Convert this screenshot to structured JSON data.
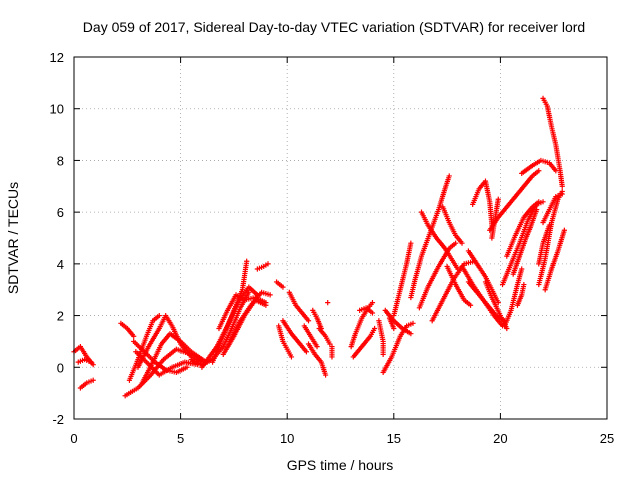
{
  "chart_data": {
    "type": "scatter",
    "title": "Day 059 of 2017, Sidereal Day-to-day VTEC variation (SDTVAR) for receiver lord",
    "xlabel": "GPS time / hours",
    "ylabel": "SDTVAR / TECUs",
    "xlim": [
      0,
      25
    ],
    "ylim": [
      -2,
      12
    ],
    "xticks": [
      "0",
      "5",
      "10",
      "15",
      "20",
      "25"
    ],
    "yticks": [
      "-2",
      "0",
      "2",
      "4",
      "6",
      "8",
      "10",
      "12"
    ],
    "grid": true,
    "marker": "plus",
    "colors": {
      "series": "#ff0000"
    },
    "series": [
      {
        "tracks": [
          [
            [
              0.0,
              0.6
            ],
            [
              0.3,
              0.8
            ],
            [
              0.6,
              0.4
            ],
            [
              0.9,
              0.1
            ]
          ],
          [
            [
              0.3,
              -0.8
            ],
            [
              0.6,
              -0.6
            ],
            [
              0.9,
              -0.5
            ]
          ],
          [
            [
              0.2,
              0.2
            ],
            [
              0.5,
              0.3
            ],
            [
              0.8,
              0.2
            ]
          ],
          [
            [
              2.2,
              1.7
            ],
            [
              2.5,
              1.5
            ],
            [
              2.8,
              1.2
            ]
          ],
          [
            [
              2.4,
              -1.1
            ],
            [
              3.0,
              -0.8
            ],
            [
              3.6,
              -0.3
            ],
            [
              4.2,
              0.3
            ],
            [
              4.8,
              0.7
            ],
            [
              5.5,
              0.5
            ],
            [
              6.0,
              0.3
            ]
          ],
          [
            [
              2.6,
              -0.5
            ],
            [
              3.0,
              0.3
            ],
            [
              3.4,
              1.2
            ],
            [
              3.7,
              1.8
            ],
            [
              4.0,
              2.0
            ]
          ],
          [
            [
              2.8,
              1.0
            ],
            [
              3.3,
              0.6
            ],
            [
              3.8,
              0.2
            ],
            [
              4.3,
              -0.1
            ],
            [
              4.8,
              -0.2
            ],
            [
              5.3,
              0.0
            ]
          ],
          [
            [
              3.0,
              0.0
            ],
            [
              3.5,
              0.8
            ],
            [
              4.0,
              1.5
            ],
            [
              4.3,
              2.0
            ],
            [
              4.6,
              1.6
            ],
            [
              5.0,
              0.9
            ],
            [
              5.5,
              0.4
            ],
            [
              6.0,
              0.2
            ]
          ],
          [
            [
              3.2,
              -0.6
            ],
            [
              3.7,
              0.2
            ],
            [
              4.1,
              0.9
            ],
            [
              4.5,
              1.3
            ],
            [
              5.0,
              1.0
            ],
            [
              5.5,
              0.6
            ],
            [
              6.2,
              0.2
            ]
          ],
          [
            [
              2.9,
              0.6
            ],
            [
              3.4,
              0.2
            ],
            [
              4.0,
              -0.3
            ],
            [
              4.6,
              0.0
            ],
            [
              5.2,
              0.2
            ],
            [
              5.8,
              0.1
            ]
          ],
          [
            [
              5.5,
              0.3
            ],
            [
              6.0,
              0.1
            ],
            [
              6.5,
              0.3
            ],
            [
              7.0,
              0.8
            ],
            [
              7.4,
              1.5
            ],
            [
              7.8,
              2.3
            ],
            [
              8.2,
              2.9
            ]
          ],
          [
            [
              6.5,
              0.2
            ],
            [
              7.0,
              1.2
            ],
            [
              7.5,
              2.2
            ],
            [
              7.9,
              3.0
            ],
            [
              8.1,
              4.1
            ]
          ],
          [
            [
              6.0,
              0.0
            ],
            [
              6.7,
              0.8
            ],
            [
              7.2,
              1.6
            ],
            [
              7.7,
              2.5
            ],
            [
              8.2,
              3.1
            ],
            [
              8.6,
              2.8
            ]
          ],
          [
            [
              6.8,
              1.5
            ],
            [
              7.2,
              2.2
            ],
            [
              7.6,
              2.8
            ],
            [
              8.0,
              2.6
            ],
            [
              8.5,
              2.7
            ],
            [
              9.0,
              2.5
            ]
          ],
          [
            [
              7.0,
              0.5
            ],
            [
              7.5,
              1.2
            ],
            [
              8.0,
              2.0
            ],
            [
              8.5,
              2.6
            ],
            [
              9.0,
              2.4
            ]
          ],
          [
            [
              7.3,
              1.0
            ],
            [
              7.8,
              1.8
            ],
            [
              8.3,
              2.4
            ],
            [
              8.8,
              2.9
            ],
            [
              9.2,
              2.8
            ]
          ],
          [
            [
              8.6,
              3.8
            ],
            [
              8.9,
              3.9
            ],
            [
              9.1,
              4.0
            ]
          ],
          [
            [
              9.5,
              3.3
            ],
            [
              9.8,
              3.1
            ]
          ],
          [
            [
              10.1,
              2.9
            ],
            [
              10.4,
              2.4
            ],
            [
              10.7,
              2.1
            ],
            [
              11.0,
              1.8
            ]
          ],
          [
            [
              9.8,
              1.8
            ],
            [
              10.2,
              1.3
            ],
            [
              10.6,
              0.9
            ],
            [
              10.9,
              0.6
            ]
          ],
          [
            [
              9.6,
              1.6
            ],
            [
              9.8,
              1.0
            ],
            [
              10.0,
              0.7
            ],
            [
              10.2,
              0.4
            ]
          ],
          [
            [
              10.8,
              1.6
            ],
            [
              11.1,
              1.2
            ],
            [
              11.4,
              0.8
            ]
          ],
          [
            [
              11.0,
              0.9
            ],
            [
              11.3,
              0.5
            ],
            [
              11.6,
              0.2
            ],
            [
              11.8,
              -0.3
            ]
          ],
          [
            [
              11.5,
              1.5
            ],
            [
              11.8,
              1.2
            ],
            [
              12.0,
              0.9
            ]
          ],
          [
            [
              11.9,
              2.5
            ]
          ],
          [
            [
              12.1,
              0.8
            ],
            [
              12.1,
              0.4
            ]
          ],
          [
            [
              11.2,
              2.2
            ],
            [
              11.4,
              1.9
            ],
            [
              11.6,
              1.5
            ]
          ],
          [
            [
              13.0,
              0.8
            ],
            [
              13.2,
              1.3
            ],
            [
              13.5,
              1.9
            ],
            [
              13.8,
              2.3
            ],
            [
              14.0,
              2.5
            ]
          ],
          [
            [
              13.1,
              0.4
            ],
            [
              13.5,
              0.8
            ],
            [
              13.9,
              1.2
            ],
            [
              14.1,
              1.5
            ]
          ],
          [
            [
              13.4,
              2.2
            ],
            [
              13.7,
              2.3
            ],
            [
              14.0,
              2.1
            ]
          ],
          [
            [
              14.3,
              1.8
            ],
            [
              14.4,
              1.4
            ],
            [
              14.5,
              1.0
            ],
            [
              14.5,
              0.5
            ]
          ],
          [
            [
              14.5,
              -0.2
            ],
            [
              14.9,
              0.4
            ],
            [
              15.3,
              1.2
            ],
            [
              15.6,
              1.6
            ],
            [
              15.9,
              1.7
            ]
          ],
          [
            [
              14.6,
              2.2
            ],
            [
              15.0,
              1.8
            ],
            [
              15.4,
              1.5
            ],
            [
              15.8,
              1.3
            ]
          ],
          [
            [
              15.0,
              2.0
            ],
            [
              15.3,
              3.0
            ],
            [
              15.6,
              4.0
            ],
            [
              15.8,
              4.8
            ]
          ],
          [
            [
              14.8,
              1.9
            ],
            [
              14.9,
              1.7
            ],
            [
              15.0,
              1.5
            ]
          ],
          [
            [
              15.8,
              2.7
            ],
            [
              16.0,
              3.4
            ],
            [
              16.3,
              4.3
            ],
            [
              16.7,
              5.2
            ],
            [
              17.1,
              6.1
            ],
            [
              17.4,
              6.9
            ],
            [
              17.6,
              7.4
            ]
          ],
          [
            [
              16.2,
              2.3
            ],
            [
              16.6,
              3.1
            ],
            [
              17.1,
              3.9
            ],
            [
              17.6,
              4.6
            ],
            [
              17.9,
              4.8
            ]
          ],
          [
            [
              16.8,
              1.8
            ],
            [
              17.3,
              2.6
            ],
            [
              17.8,
              3.4
            ],
            [
              18.3,
              4.0
            ],
            [
              18.8,
              4.1
            ]
          ],
          [
            [
              16.3,
              6.0
            ],
            [
              16.6,
              5.5
            ],
            [
              17.0,
              5.0
            ],
            [
              17.4,
              4.6
            ],
            [
              17.7,
              4.2
            ],
            [
              18.0,
              3.8
            ]
          ],
          [
            [
              17.5,
              3.9
            ],
            [
              17.9,
              3.2
            ],
            [
              18.3,
              2.6
            ],
            [
              18.6,
              2.4
            ]
          ],
          [
            [
              17.3,
              6.2
            ],
            [
              17.6,
              5.6
            ],
            [
              17.9,
              5.1
            ],
            [
              18.2,
              4.8
            ]
          ],
          [
            [
              18.7,
              6.3
            ],
            [
              19.0,
              6.9
            ],
            [
              19.3,
              7.2
            ],
            [
              19.5,
              6.4
            ],
            [
              19.6,
              5.5
            ]
          ],
          [
            [
              18.5,
              4.5
            ],
            [
              18.9,
              4.0
            ],
            [
              19.3,
              3.5
            ],
            [
              19.6,
              3.0
            ],
            [
              19.9,
              2.5
            ]
          ],
          [
            [
              18.2,
              3.9
            ],
            [
              18.7,
              3.2
            ],
            [
              19.2,
              2.6
            ],
            [
              19.7,
              2.0
            ],
            [
              20.1,
              1.6
            ]
          ],
          [
            [
              18.5,
              3.3
            ],
            [
              18.9,
              2.9
            ],
            [
              19.4,
              2.4
            ],
            [
              19.8,
              2.0
            ],
            [
              20.2,
              1.8
            ]
          ],
          [
            [
              19.3,
              3.3
            ],
            [
              19.6,
              2.7
            ],
            [
              20.0,
              2.0
            ],
            [
              20.3,
              1.5
            ]
          ],
          [
            [
              19.6,
              5.0
            ],
            [
              19.8,
              6.0
            ],
            [
              19.9,
              6.5
            ]
          ],
          [
            [
              20.2,
              1.6
            ],
            [
              20.5,
              2.2
            ],
            [
              20.8,
              3.2
            ],
            [
              21.0,
              3.8
            ]
          ],
          [
            [
              20.6,
              3.6
            ],
            [
              20.9,
              4.3
            ],
            [
              21.2,
              5.0
            ],
            [
              21.4,
              5.4
            ],
            [
              21.7,
              6.1
            ]
          ],
          [
            [
              20.1,
              3.2
            ],
            [
              20.5,
              4.0
            ],
            [
              20.9,
              4.8
            ],
            [
              21.3,
              5.7
            ],
            [
              21.7,
              6.3
            ],
            [
              22.0,
              6.4
            ]
          ],
          [
            [
              20.3,
              4.3
            ],
            [
              20.7,
              5.1
            ],
            [
              21.1,
              5.8
            ],
            [
              21.5,
              6.2
            ],
            [
              21.8,
              6.4
            ]
          ],
          [
            [
              19.5,
              5.3
            ],
            [
              19.9,
              5.8
            ],
            [
              20.3,
              6.2
            ],
            [
              20.7,
              6.6
            ],
            [
              21.1,
              7.0
            ],
            [
              21.5,
              7.4
            ],
            [
              21.8,
              7.6
            ]
          ],
          [
            [
              20.8,
              2.4
            ],
            [
              21.0,
              2.8
            ],
            [
              21.1,
              3.2
            ]
          ],
          [
            [
              21.0,
              7.5
            ],
            [
              21.5,
              7.8
            ],
            [
              21.9,
              8.0
            ],
            [
              22.3,
              7.9
            ],
            [
              22.6,
              7.6
            ]
          ],
          [
            [
              21.8,
              3.2
            ],
            [
              22.1,
              4.2
            ],
            [
              22.4,
              5.6
            ],
            [
              22.7,
              6.5
            ],
            [
              22.9,
              6.8
            ]
          ],
          [
            [
              22.0,
              5.6
            ],
            [
              22.3,
              6.1
            ],
            [
              22.6,
              6.6
            ],
            [
              22.9,
              6.7
            ]
          ],
          [
            [
              22.1,
              3.0
            ],
            [
              22.4,
              3.8
            ],
            [
              22.7,
              4.5
            ],
            [
              23.0,
              5.3
            ]
          ],
          [
            [
              21.8,
              4.0
            ],
            [
              22.0,
              4.8
            ],
            [
              22.3,
              5.5
            ]
          ],
          [
            [
              22.0,
              10.4
            ],
            [
              22.2,
              10.1
            ],
            [
              22.4,
              9.3
            ],
            [
              22.6,
              8.6
            ],
            [
              22.8,
              7.6
            ],
            [
              22.9,
              7.0
            ]
          ]
        ]
      }
    ]
  }
}
